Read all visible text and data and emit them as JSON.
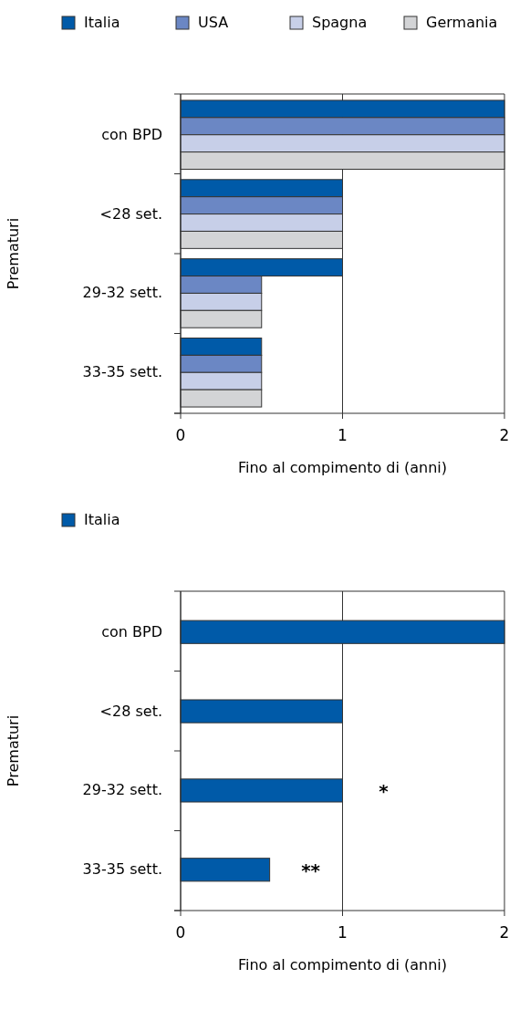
{
  "chart_data": [
    {
      "type": "bar",
      "orientation": "horizontal",
      "ylabel": "Prematuri",
      "xlabel": "Fino al compimento di (anni)",
      "categories": [
        "con BPD",
        "<28 set.",
        "29-32 sett.",
        "33-35 sett."
      ],
      "series": [
        {
          "name": "Italia",
          "color": "#005aa8",
          "values": [
            2,
            1,
            1,
            0.5
          ]
        },
        {
          "name": "USA",
          "color": "#6b87c4",
          "values": [
            2,
            1,
            0.5,
            0.5
          ]
        },
        {
          "name": "Spagna",
          "color": "#c7cfe8",
          "values": [
            2,
            1,
            0.5,
            0.5
          ]
        },
        {
          "name": "Germania",
          "color": "#d3d4d6",
          "values": [
            2,
            1,
            0.5,
            0.5
          ]
        }
      ],
      "xlim": [
        0,
        2
      ],
      "xticks": [
        0,
        1,
        2
      ],
      "grid": "x",
      "legend": "top"
    },
    {
      "type": "bar",
      "orientation": "horizontal",
      "ylabel": "Prematuri",
      "xlabel": "Fino al compimento di (anni)",
      "categories": [
        "con BPD",
        "<28 set.",
        "29-32 sett.",
        "33-35 sett."
      ],
      "series": [
        {
          "name": "Italia",
          "color": "#005aa8",
          "values": [
            2,
            1,
            1,
            0.55
          ]
        }
      ],
      "xlim": [
        0,
        2
      ],
      "xticks": [
        0,
        1,
        2
      ],
      "grid": "x",
      "legend": "top",
      "annotations": [
        "*",
        "**"
      ]
    }
  ]
}
